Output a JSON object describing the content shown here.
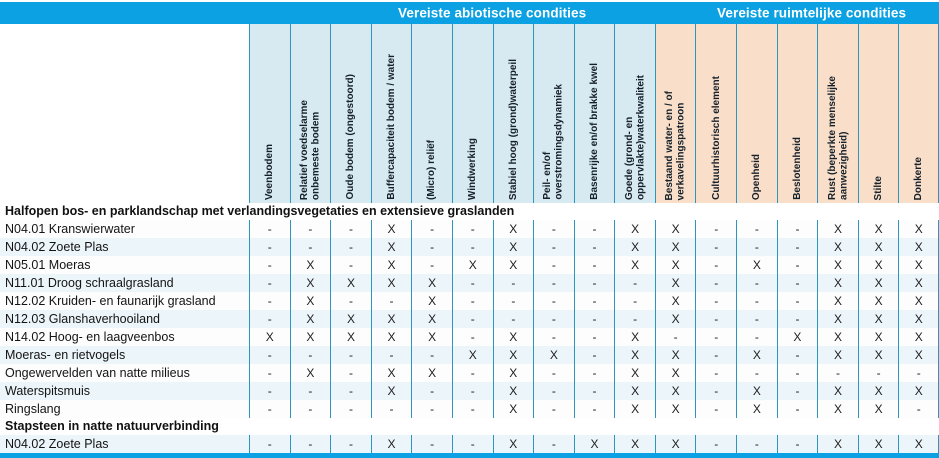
{
  "groups": {
    "abiotic": "Vereiste abiotische condities",
    "spatial": "Vereiste ruimtelijke condities"
  },
  "columns": [
    {
      "label": "Veenbodem",
      "group": "abiotic"
    },
    {
      "label": "Relatief voedselarme\nonbemeste bodem",
      "group": "abiotic"
    },
    {
      "label": "Oude bodem (ongestoord)",
      "group": "abiotic"
    },
    {
      "label": "Buffercapaciteit bodem / water",
      "group": "abiotic"
    },
    {
      "label": "(Micro) reliëf",
      "group": "abiotic"
    },
    {
      "label": "Windwerking",
      "group": "abiotic"
    },
    {
      "label": "Stabiel hoog (grond)waterpeil",
      "group": "abiotic"
    },
    {
      "label": "Peil- en/of\noverstromingsdynamiek",
      "group": "abiotic"
    },
    {
      "label": "Basenrijke en/of brakke kwel",
      "group": "abiotic"
    },
    {
      "label": "Goede (grond- en\noppervlakte)waterkwaliteit",
      "group": "abiotic"
    },
    {
      "label": "Bestaand water- en / of\nverkavelingspatroon",
      "group": "spatial"
    },
    {
      "label": "Cultuurhistorisch element",
      "group": "spatial"
    },
    {
      "label": "Openheid",
      "group": "spatial"
    },
    {
      "label": "Beslotenheid",
      "group": "spatial"
    },
    {
      "label": "Rust (beperkte menselijke\naanwezigheid)",
      "group": "spatial"
    },
    {
      "label": "Stilte",
      "group": "spatial"
    },
    {
      "label": "Donkerte",
      "group": "spatial"
    }
  ],
  "rows": [
    {
      "type": "section",
      "label": "Halfopen bos- en parklandschap met verlandingsvegetaties en extensieve graslanden"
    },
    {
      "type": "data",
      "label": "N04.01 Kranswierwater",
      "marks": [
        "-",
        "-",
        "-",
        "X",
        "-",
        "-",
        "X",
        "-",
        "-",
        "X",
        "X",
        "-",
        "-",
        "-",
        "X",
        "X",
        "X"
      ]
    },
    {
      "type": "data",
      "label": "N04.02 Zoete Plas",
      "marks": [
        "-",
        "-",
        "-",
        "X",
        "-",
        "-",
        "X",
        "-",
        "-",
        "X",
        "X",
        "-",
        "-",
        "-",
        "X",
        "X",
        "X"
      ]
    },
    {
      "type": "data",
      "label": "N05.01 Moeras",
      "marks": [
        "-",
        "X",
        "-",
        "X",
        "-",
        "X",
        "X",
        "-",
        "-",
        "X",
        "X",
        "-",
        "X",
        "-",
        "X",
        "X",
        "X"
      ]
    },
    {
      "type": "data",
      "label": "N11.01 Droog schraalgrasland",
      "marks": [
        "-",
        "X",
        "X",
        "X",
        "X",
        "-",
        "-",
        "-",
        "-",
        "-",
        "X",
        "-",
        "-",
        "-",
        "X",
        "X",
        "X"
      ]
    },
    {
      "type": "data",
      "label": "N12.02 Kruiden- en faunarijk grasland",
      "marks": [
        "-",
        "X",
        "-",
        "-",
        "X",
        "-",
        "-",
        "-",
        "-",
        "-",
        "X",
        "-",
        "-",
        "-",
        "X",
        "X",
        "X"
      ]
    },
    {
      "type": "data",
      "label": "N12.03 Glanshaverhooiland",
      "marks": [
        "-",
        "X",
        "X",
        "X",
        "X",
        "-",
        "-",
        "-",
        "-",
        "-",
        "X",
        "-",
        "-",
        "-",
        "X",
        "X",
        "X"
      ]
    },
    {
      "type": "data",
      "label": "N14.02 Hoog- en laagveenbos",
      "marks": [
        "X",
        "X",
        "X",
        "X",
        "X",
        "-",
        "X",
        "-",
        "-",
        "X",
        "-",
        "-",
        "-",
        "X",
        "X",
        "X",
        "X"
      ]
    },
    {
      "type": "data",
      "label": "Moeras- en rietvogels",
      "marks": [
        "-",
        "-",
        "-",
        "-",
        "-",
        "X",
        "X",
        "X",
        "-",
        "X",
        "X",
        "-",
        "X",
        "-",
        "X",
        "X",
        "X"
      ]
    },
    {
      "type": "data",
      "label": "Ongewervelden van natte milieus",
      "marks": [
        "-",
        "X",
        "-",
        "X",
        "X",
        "-",
        "X",
        "-",
        "-",
        "X",
        "X",
        "-",
        "-",
        "-",
        "-",
        "-",
        "-"
      ]
    },
    {
      "type": "data",
      "label": "Waterspitsmuis",
      "marks": [
        "-",
        "-",
        "-",
        "X",
        "-",
        "-",
        "X",
        "-",
        "-",
        "X",
        "X",
        "-",
        "X",
        "-",
        "X",
        "X",
        "X"
      ]
    },
    {
      "type": "data",
      "label": "Ringslang",
      "marks": [
        "-",
        "-",
        "-",
        "-",
        "-",
        "-",
        "X",
        "-",
        "-",
        "X",
        "X",
        "-",
        "X",
        "-",
        "X",
        "X",
        "-"
      ]
    },
    {
      "type": "section",
      "label": "Stapsteen in natte natuurverbinding"
    },
    {
      "type": "data",
      "label": "N04.02 Zoete Plas",
      "marks": [
        "-",
        "-",
        "-",
        "X",
        "-",
        "-",
        "X",
        "-",
        "X",
        "X",
        "X",
        "-",
        "-",
        "-",
        "X",
        "X",
        "X"
      ]
    }
  ],
  "colors": {
    "bar_blue": "#0ba1e2",
    "header_blue": "#d7e9f1",
    "header_peach": "#f9dfc9",
    "grid_line": "#2e95bf",
    "stripe_blue": "#ecf5fa"
  }
}
